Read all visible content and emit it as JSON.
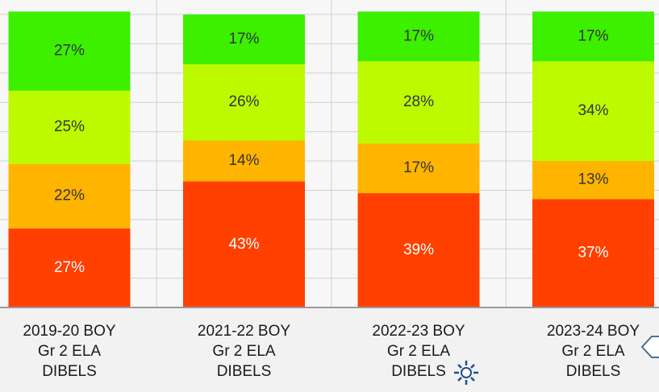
{
  "chart_data": {
    "type": "stacked-bar",
    "categories": [
      [
        "2019-20 BOY",
        "Gr 2 ELA",
        "DIBELS"
      ],
      [
        "2021-22 BOY",
        "Gr 2 ELA",
        "DIBELS"
      ],
      [
        "2022-23 BOY",
        "Gr 2 ELA",
        "DIBELS"
      ],
      [
        "2023-24 BOY",
        "Gr 2 ELA",
        "DIBELS"
      ]
    ],
    "series": [
      {
        "color": "#ff4000",
        "label_color": "#ffffff",
        "values": [
          27,
          43,
          39,
          37
        ],
        "value_labels": [
          "27%",
          "43%",
          "39%",
          "37%"
        ]
      },
      {
        "color": "#ffb400",
        "label_color": "#333333",
        "values": [
          22,
          14,
          17,
          13
        ],
        "value_labels": [
          "22%",
          "14%",
          "17%",
          "13%"
        ]
      },
      {
        "color": "#bdfa00",
        "label_color": "#333333",
        "values": [
          25,
          26,
          28,
          34
        ],
        "value_labels": [
          "25%",
          "26%",
          "28%",
          "34%"
        ]
      },
      {
        "color": "#3cf000",
        "label_color": "#333333",
        "values": [
          27,
          17,
          17,
          17
        ],
        "value_labels": [
          "27%",
          "17%",
          "17%",
          "17%"
        ]
      }
    ],
    "ylim": [
      0,
      100
    ],
    "yticks": [
      0,
      10,
      20,
      30,
      40,
      50,
      60,
      70,
      80,
      90,
      100
    ],
    "grid": true
  }
}
